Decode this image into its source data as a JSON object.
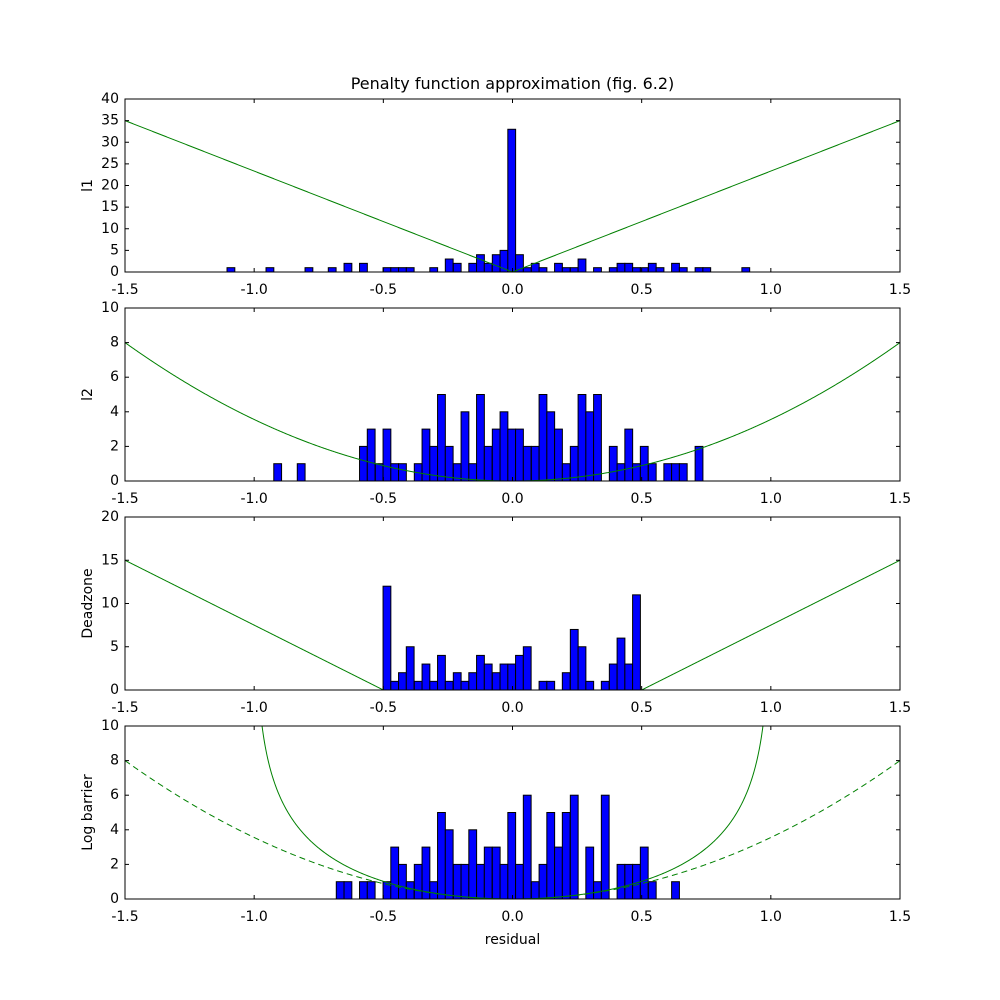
{
  "chart_data": {
    "type": "bar",
    "title": "Penalty function approximation (fig. 6.2)",
    "xlabel": "residual",
    "xlim": [
      -1.5,
      1.5
    ],
    "x_ticks": [
      "-1.5",
      "-1.0",
      "-0.5",
      "0.0",
      "0.5",
      "1.0",
      "1.5"
    ],
    "bin_width": 0.0302,
    "colors": {
      "bars": "#0000ff",
      "bar_edge": "#000000",
      "curve": "#008000"
    },
    "grid": false,
    "panels": [
      {
        "ylabel": "l1",
        "ylim": [
          0,
          40
        ],
        "y_ticks": [
          "0",
          "5",
          "10",
          "15",
          "20",
          "25",
          "30",
          "35",
          "40"
        ],
        "curves": [
          {
            "function": "abs",
            "scale": 23.333,
            "style": "solid"
          }
        ],
        "x": [
          -1.09,
          -0.939,
          -0.788,
          -0.698,
          -0.637,
          -0.577,
          -0.486,
          -0.456,
          -0.426,
          -0.396,
          -0.305,
          -0.245,
          -0.214,
          -0.154,
          -0.124,
          -0.094,
          -0.063,
          -0.033,
          -0.003,
          0.027,
          0.057,
          0.088,
          0.118,
          0.178,
          0.208,
          0.239,
          0.269,
          0.329,
          0.39,
          0.42,
          0.45,
          0.48,
          0.51,
          0.541,
          0.571,
          0.631,
          0.661,
          0.722,
          0.752,
          0.903
        ],
        "counts": [
          1,
          1,
          1,
          1,
          2,
          2,
          1,
          1,
          1,
          1,
          1,
          3,
          2,
          2,
          4,
          2,
          4,
          5,
          33,
          4,
          1,
          2,
          1,
          2,
          1,
          1,
          3,
          1,
          1,
          2,
          2,
          1,
          1,
          2,
          1,
          2,
          1,
          1,
          1,
          1
        ]
      },
      {
        "ylabel": "l2",
        "ylim": [
          0,
          10
        ],
        "y_ticks": [
          "0",
          "2",
          "4",
          "6",
          "8",
          "10"
        ],
        "curves": [
          {
            "function": "square",
            "scale": 3.556,
            "style": "solid"
          }
        ],
        "x": [
          -0.909,
          -0.818,
          -0.577,
          -0.547,
          -0.516,
          -0.486,
          -0.456,
          -0.426,
          -0.365,
          -0.335,
          -0.305,
          -0.275,
          -0.245,
          -0.214,
          -0.184,
          -0.154,
          -0.124,
          -0.094,
          -0.063,
          -0.033,
          -0.003,
          0.027,
          0.057,
          0.088,
          0.118,
          0.148,
          0.178,
          0.208,
          0.239,
          0.269,
          0.299,
          0.329,
          0.39,
          0.42,
          0.45,
          0.48,
          0.51,
          0.541,
          0.601,
          0.631,
          0.661,
          0.722
        ],
        "counts": [
          1,
          1,
          2,
          3,
          1,
          3,
          1,
          1,
          1,
          3,
          2,
          5,
          2,
          1,
          4,
          1,
          5,
          2,
          3,
          4,
          3,
          3,
          2,
          2,
          5,
          4,
          3,
          1,
          2,
          5,
          4,
          5,
          2,
          1,
          3,
          1,
          2,
          1,
          1,
          1,
          1,
          2
        ]
      },
      {
        "ylabel": "Deadzone",
        "ylim": [
          0,
          20
        ],
        "y_ticks": [
          "0",
          "5",
          "10",
          "15",
          "20"
        ],
        "curves": [
          {
            "function": "deadzone",
            "width": 0.5,
            "scale": 15,
            "style": "solid"
          }
        ],
        "x": [
          -0.486,
          -0.456,
          -0.426,
          -0.396,
          -0.365,
          -0.335,
          -0.305,
          -0.275,
          -0.245,
          -0.214,
          -0.184,
          -0.154,
          -0.124,
          -0.094,
          -0.063,
          -0.033,
          -0.003,
          0.027,
          0.057,
          0.118,
          0.148,
          0.208,
          0.239,
          0.269,
          0.299,
          0.359,
          0.39,
          0.42,
          0.45,
          0.48
        ],
        "counts": [
          12,
          1,
          2,
          5,
          1,
          3,
          1,
          4,
          1,
          2,
          1,
          2,
          4,
          3,
          2,
          3,
          3,
          4,
          5,
          1,
          1,
          2,
          7,
          5,
          1,
          1,
          3,
          6,
          3,
          11
        ]
      },
      {
        "ylabel": "Log barrier",
        "ylim": [
          0,
          10
        ],
        "y_ticks": [
          "0",
          "2",
          "4",
          "6",
          "8",
          "10"
        ],
        "curves": [
          {
            "function": "log_barrier",
            "scale": 3.556,
            "style": "solid"
          },
          {
            "function": "square",
            "scale": 3.556,
            "style": "dashed"
          }
        ],
        "x": [
          -0.667,
          -0.637,
          -0.577,
          -0.547,
          -0.486,
          -0.456,
          -0.426,
          -0.396,
          -0.365,
          -0.335,
          -0.305,
          -0.275,
          -0.245,
          -0.214,
          -0.184,
          -0.154,
          -0.124,
          -0.094,
          -0.063,
          -0.033,
          -0.003,
          0.027,
          0.057,
          0.088,
          0.118,
          0.148,
          0.178,
          0.208,
          0.239,
          0.299,
          0.329,
          0.359,
          0.42,
          0.45,
          0.48,
          0.51,
          0.541,
          0.631
        ],
        "counts": [
          1,
          1,
          1,
          1,
          1,
          3,
          2,
          1,
          2,
          3,
          1,
          5,
          4,
          2,
          2,
          4,
          2,
          3,
          3,
          2,
          5,
          2,
          6,
          1,
          2,
          5,
          3,
          5,
          6,
          3,
          1,
          6,
          2,
          2,
          2,
          3,
          1,
          1
        ]
      }
    ]
  }
}
